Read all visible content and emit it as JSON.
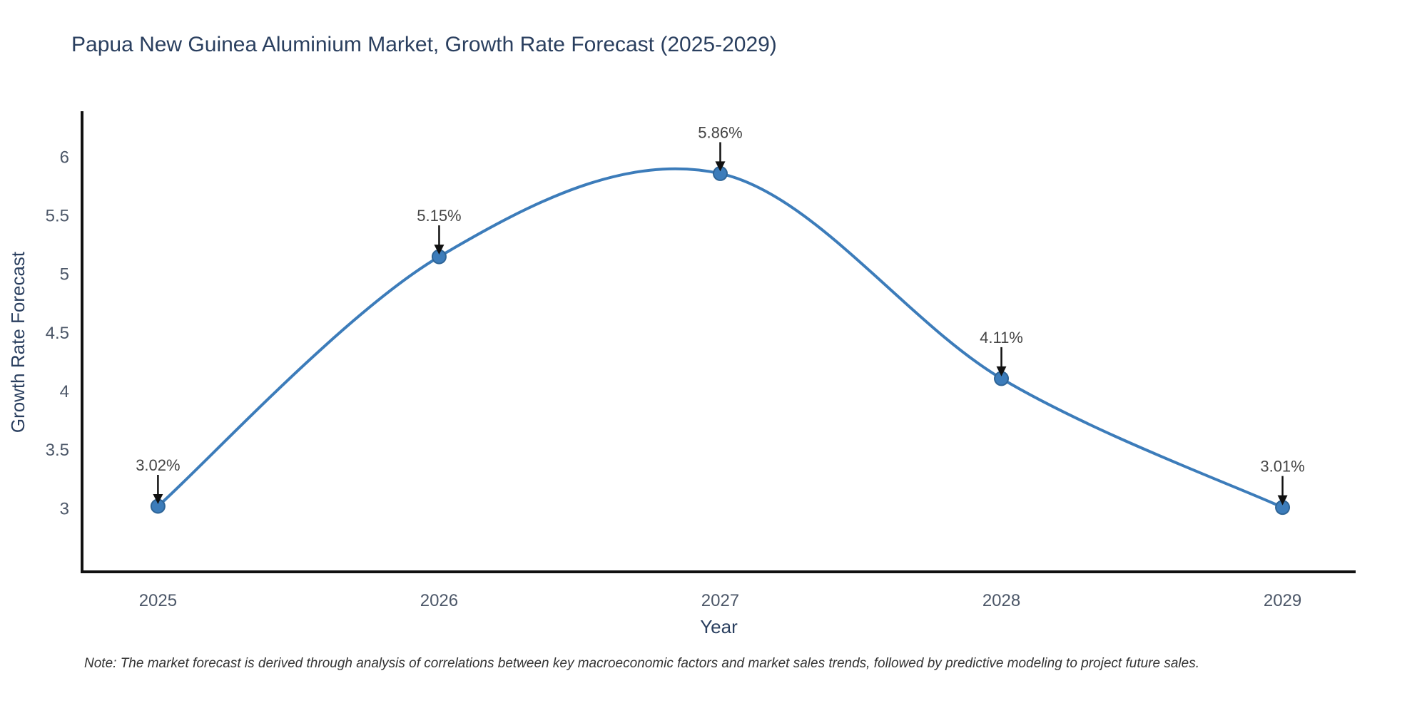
{
  "chart_data": {
    "type": "line",
    "title": "Papua New Guinea Aluminium Market, Growth Rate Forecast (2025-2029)",
    "xlabel": "Year",
    "ylabel": "Growth Rate Forecast",
    "categories": [
      2025,
      2026,
      2027,
      2028,
      2029
    ],
    "series": [
      {
        "name": "Growth Rate Forecast",
        "values": [
          3.02,
          5.15,
          5.86,
          4.11,
          3.01
        ]
      }
    ],
    "point_labels": [
      "3.02%",
      "5.15%",
      "5.86%",
      "4.11%",
      "3.01%"
    ],
    "y_ticks": [
      3,
      3.5,
      4,
      4.5,
      5,
      5.5,
      6
    ],
    "x_ticks": [
      2025,
      2026,
      2027,
      2028,
      2029
    ],
    "ylim": [
      2.46,
      6.38
    ],
    "xlim": [
      2024.73,
      2029.26
    ],
    "line_style": "spline",
    "grid": false,
    "legend_position": "none",
    "colors": {
      "line": "#3c7cba",
      "marker": "#3c7cba",
      "marker_edge": "#2e6496",
      "arrow": "#111111",
      "axis_line": "#111111",
      "title_text": "#2a3f5f",
      "axis_title_text": "#2a3f5f",
      "tick_text": "#4c5768",
      "annotation_text": "#444444",
      "background": "#ffffff"
    }
  },
  "footnote": "Note: The market forecast is derived through analysis of correlations between key macroeconomic factors and market sales trends, followed by predictive modeling to project future sales."
}
